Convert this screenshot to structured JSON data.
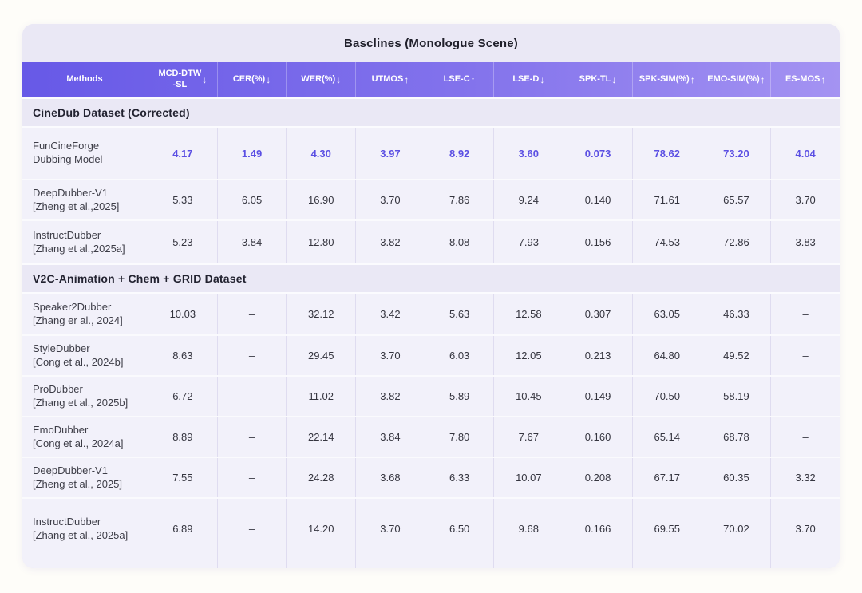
{
  "chart_data": {
    "type": "table",
    "title": "Basclines (Monologue Scene)",
    "columns": [
      {
        "label": "Methods",
        "arrow": ""
      },
      {
        "label": "MCD-DTW\n-SL",
        "arrow": "↓"
      },
      {
        "label": "CER(%)",
        "arrow": "↓"
      },
      {
        "label": "WER(%)",
        "arrow": "↓"
      },
      {
        "label": "UTMOS",
        "arrow": "↑"
      },
      {
        "label": "LSE-C",
        "arrow": "↑"
      },
      {
        "label": "LSE-D",
        "arrow": "↓"
      },
      {
        "label": "SPK-TL",
        "arrow": "↓"
      },
      {
        "label": "SPK-SIM(%)",
        "arrow": "↑"
      },
      {
        "label": "EMO-SIM(%)",
        "arrow": "↑"
      },
      {
        "label": "ES-MOS",
        "arrow": "↑"
      }
    ],
    "sections": [
      {
        "header": "CineDub Dataset (Corrected)",
        "rows": [
          {
            "method": "FunCineForge",
            "cite": "Dubbing Model",
            "highlight": true,
            "values": [
              "4.17",
              "1.49",
              "4.30",
              "3.97",
              "8.92",
              "3.60",
              "0.073",
              "78.62",
              "73.20",
              "4.04"
            ]
          },
          {
            "method": "DeepDubber-V1",
            "cite": "[Zheng et al.,2025]",
            "highlight": false,
            "values": [
              "5.33",
              "6.05",
              "16.90",
              "3.70",
              "7.86",
              "9.24",
              "0.140",
              "71.61",
              "65.57",
              "3.70"
            ]
          },
          {
            "method": "InstructDubber",
            "cite": "[Zhang et al.,2025a]",
            "highlight": false,
            "values": [
              "5.23",
              "3.84",
              "12.80",
              "3.82",
              "8.08",
              "7.93",
              "0.156",
              "74.53",
              "72.86",
              "3.83"
            ]
          }
        ]
      },
      {
        "header": "V2C-Animation + Chem + GRID Dataset",
        "rows": [
          {
            "method": "Speaker2Dubber",
            "cite": "[Zhang er al., 2024]",
            "highlight": false,
            "values": [
              "10.03",
              "–",
              "32.12",
              "3.42",
              "5.63",
              "12.58",
              "0.307",
              "63.05",
              "46.33",
              "–"
            ]
          },
          {
            "method": "StyleDubber",
            "cite": "[Cong et al., 2024b]",
            "highlight": false,
            "values": [
              "8.63",
              "–",
              "29.45",
              "3.70",
              "6.03",
              "12.05",
              "0.213",
              "64.80",
              "49.52",
              "–"
            ]
          },
          {
            "method": "ProDubber",
            "cite": "[Zhang et al., 2025b]",
            "highlight": false,
            "values": [
              "6.72",
              "–",
              "11.02",
              "3.82",
              "5.89",
              "10.45",
              "0.149",
              "70.50",
              "58.19",
              "–"
            ]
          },
          {
            "method": "EmoDubber",
            "cite": "[Cong et al., 2024a]",
            "highlight": false,
            "values": [
              "8.89",
              "–",
              "22.14",
              "3.84",
              "7.80",
              "7.67",
              "0.160",
              "65.14",
              "68.78",
              "–"
            ]
          },
          {
            "method": "DeepDubber-V1",
            "cite": "[Zheng et al., 2025]",
            "highlight": false,
            "values": [
              "7.55",
              "–",
              "24.28",
              "3.68",
              "6.33",
              "10.07",
              "0.208",
              "67.17",
              "60.35",
              "3.32"
            ]
          },
          {
            "method": "InstructDubber",
            "cite": "[Zhang et al., 2025a]",
            "highlight": false,
            "values": [
              "6.89",
              "–",
              "14.20",
              "3.70",
              "6.50",
              "9.68",
              "0.166",
              "69.55",
              "70.02",
              "3.70"
            ]
          }
        ]
      }
    ],
    "colors": {
      "header_gradient_start": "#6759e7",
      "header_gradient_end": "#a493f2",
      "highlight_value": "#5b4fe3",
      "card_background": "#eae8f5",
      "row_background": "#f2f1fa"
    }
  }
}
